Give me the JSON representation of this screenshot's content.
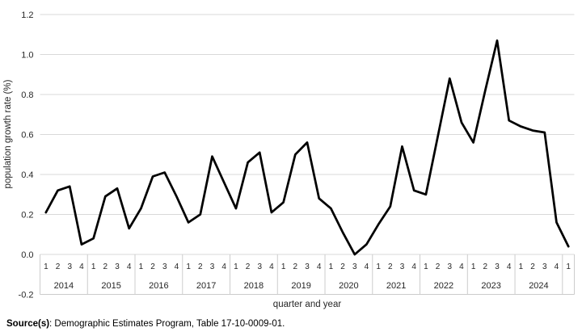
{
  "chart_data": {
    "type": "line",
    "title": "",
    "ylabel": "population growth rate (%)",
    "xlabel": "quarter and year",
    "ylim": [
      -0.2,
      1.2
    ],
    "grid": true,
    "legend": false,
    "y_ticks": [
      "1.2",
      "1.0",
      "0.8",
      "0.6",
      "0.4",
      "0.2",
      "0.0",
      "-0.2"
    ],
    "line_color": "#000000",
    "gridline_color": "#d9d9d9",
    "table_border_color": "#cccccc",
    "text_color": "#262626",
    "groups": [
      {
        "year": "2014",
        "quarters": [
          "1",
          "2",
          "3",
          "4"
        ]
      },
      {
        "year": "2015",
        "quarters": [
          "1",
          "2",
          "3",
          "4"
        ]
      },
      {
        "year": "2016",
        "quarters": [
          "1",
          "2",
          "3",
          "4"
        ]
      },
      {
        "year": "2017",
        "quarters": [
          "1",
          "2",
          "3",
          "4"
        ]
      },
      {
        "year": "2018",
        "quarters": [
          "1",
          "2",
          "3",
          "4"
        ]
      },
      {
        "year": "2019",
        "quarters": [
          "1",
          "2",
          "3",
          "4"
        ]
      },
      {
        "year": "2020",
        "quarters": [
          "1",
          "2",
          "3",
          "4"
        ]
      },
      {
        "year": "2021",
        "quarters": [
          "1",
          "2",
          "3",
          "4"
        ]
      },
      {
        "year": "2022",
        "quarters": [
          "1",
          "2",
          "3",
          "4"
        ]
      },
      {
        "year": "2023",
        "quarters": [
          "1",
          "2",
          "3",
          "4"
        ]
      },
      {
        "year": "2024",
        "quarters": [
          "1",
          "2",
          "3",
          "4"
        ]
      },
      {
        "year": "",
        "quarters": [
          "1"
        ]
      }
    ],
    "series": [
      {
        "name": "population growth rate (%)",
        "values": [
          0.21,
          0.32,
          0.34,
          0.05,
          0.08,
          0.29,
          0.33,
          0.13,
          0.23,
          0.39,
          0.41,
          0.29,
          0.16,
          0.2,
          0.49,
          0.36,
          0.23,
          0.46,
          0.51,
          0.21,
          0.26,
          0.5,
          0.56,
          0.28,
          0.23,
          0.11,
          0.0,
          0.05,
          0.15,
          0.24,
          0.54,
          0.32,
          0.3,
          0.59,
          0.88,
          0.66,
          0.56,
          0.82,
          1.07,
          0.67,
          0.64,
          0.62,
          0.61,
          0.16,
          0.04
        ]
      }
    ]
  },
  "source": {
    "label_bold": "Source(s)",
    "label_rest": ": Demographic Estimates Program, Table 17-10-0009-01."
  }
}
